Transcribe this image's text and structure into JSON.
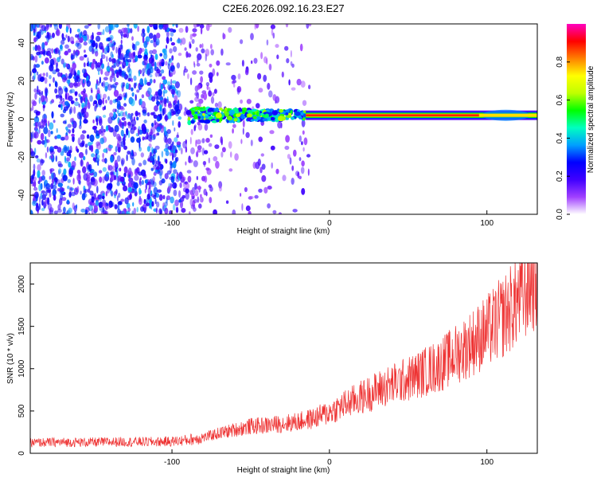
{
  "chart_data": [
    {
      "type": "heatmap",
      "title": "C2E6.2026.092.16.23.E27",
      "xlabel": "Height of straight line (km)",
      "ylabel": "Frequency (Hz)",
      "xlim": [
        -190,
        132
      ],
      "ylim": [
        -50,
        50
      ],
      "x_ticks": [
        -100,
        0,
        100
      ],
      "y_ticks": [
        -40,
        -20,
        0,
        20,
        40
      ],
      "colorbar": {
        "label": "Normalized spectral amplitude",
        "range": [
          0,
          1
        ],
        "ticks": [
          0.0,
          0.2,
          0.4,
          0.6,
          0.8
        ],
        "tick_labels": [
          "0.0",
          "0.2",
          "0.4",
          "0.6",
          "0.8"
        ],
        "colors": [
          "#ffffff",
          "#a040ff",
          "#4000ff",
          "#0000ff",
          "#00a0ff",
          "#00ffc0",
          "#00ff00",
          "#c0ff00",
          "#ffff00",
          "#ff8000",
          "#ff0000",
          "#ff00c0"
        ]
      },
      "features": [
        {
          "name": "noise",
          "x_range": [
            -190,
            -12
          ],
          "description_level": 0.15
        },
        {
          "name": "transition",
          "x_range": [
            -90,
            -15
          ],
          "freq_center": 2,
          "level": 0.5
        },
        {
          "name": "strong_line",
          "x_range": [
            -15,
            132
          ],
          "freq_center": 2,
          "level": 0.9
        }
      ]
    },
    {
      "type": "line",
      "xlabel": "Height of straight line (km)",
      "ylabel": "SNR (10 * v/v)",
      "xlim": [
        -190,
        132
      ],
      "ylim": [
        0,
        2250
      ],
      "x_ticks": [
        -100,
        0,
        100
      ],
      "y_ticks": [
        0,
        500,
        1000,
        1500,
        2000
      ],
      "color": "#ee3333",
      "series": [
        {
          "name": "SNR",
          "x": [
            -190,
            -170,
            -150,
            -130,
            -110,
            -100,
            -90,
            -80,
            -70,
            -60,
            -50,
            -40,
            -30,
            -20,
            -10,
            0,
            10,
            20,
            30,
            40,
            50,
            60,
            70,
            80,
            90,
            100,
            110,
            120,
            130
          ],
          "values": [
            120,
            125,
            125,
            130,
            130,
            135,
            150,
            180,
            230,
            270,
            310,
            320,
            340,
            360,
            400,
            470,
            560,
            640,
            720,
            790,
            850,
            930,
            1010,
            1130,
            1260,
            1390,
            1560,
            1760,
            2000
          ]
        }
      ]
    }
  ]
}
